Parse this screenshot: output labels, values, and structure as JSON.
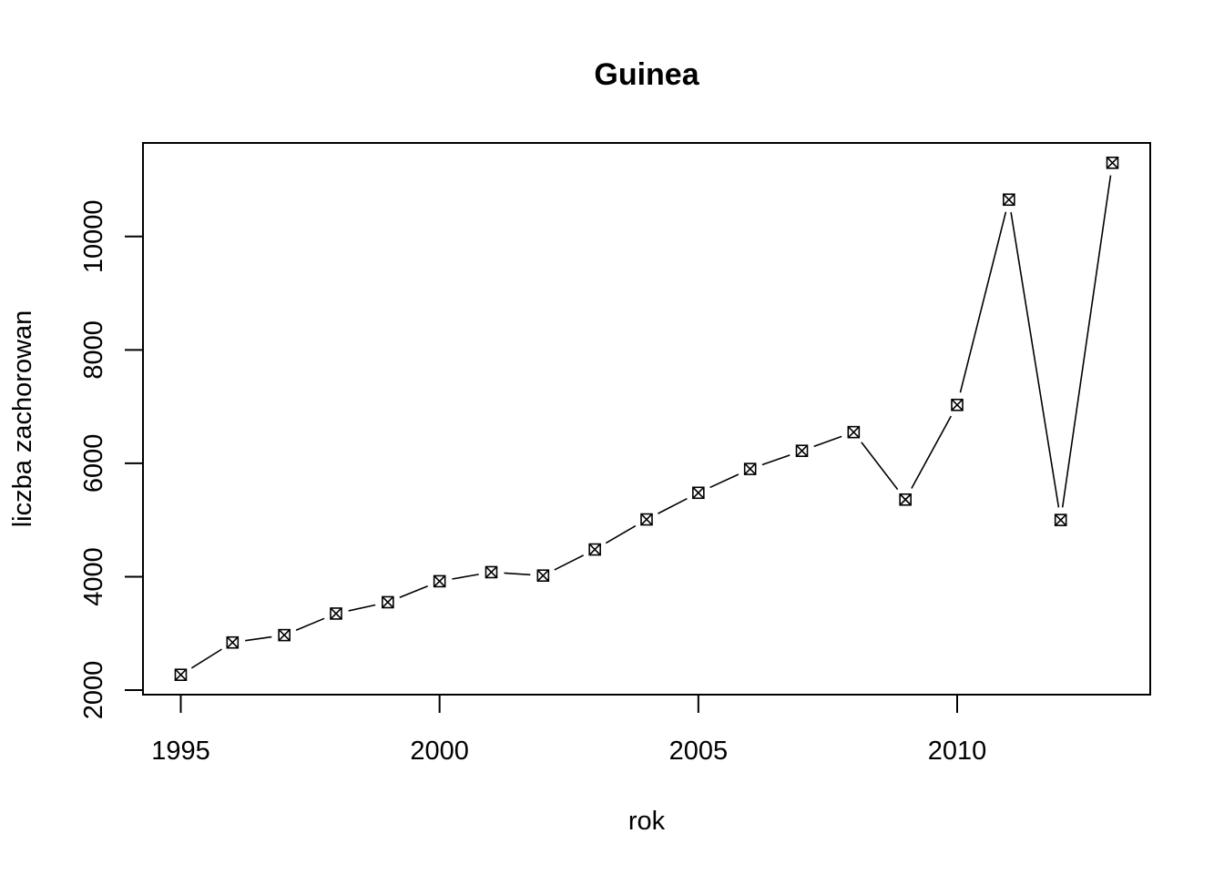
{
  "chart_data": {
    "type": "line",
    "title": "Guinea",
    "xlabel": "rok",
    "ylabel": "liczba zachorowan",
    "x": [
      1995,
      1996,
      1997,
      1998,
      1999,
      2000,
      2001,
      2002,
      2003,
      2004,
      2005,
      2006,
      2007,
      2008,
      2009,
      2010,
      2011,
      2012,
      2013
    ],
    "values": [
      2270,
      2840,
      2970,
      3350,
      3550,
      3920,
      4080,
      4020,
      4480,
      5010,
      5480,
      5900,
      6220,
      6550,
      5360,
      7030,
      10650,
      5000,
      11300
    ],
    "xticks": [
      1995,
      2000,
      2005,
      2010
    ],
    "yticks": [
      2000,
      4000,
      6000,
      8000,
      10000
    ],
    "xlim": [
      1994.27,
      2013.73
    ],
    "ylim": [
      1920,
      11650
    ],
    "marker": "box-x",
    "grid": false,
    "legend": "none"
  }
}
